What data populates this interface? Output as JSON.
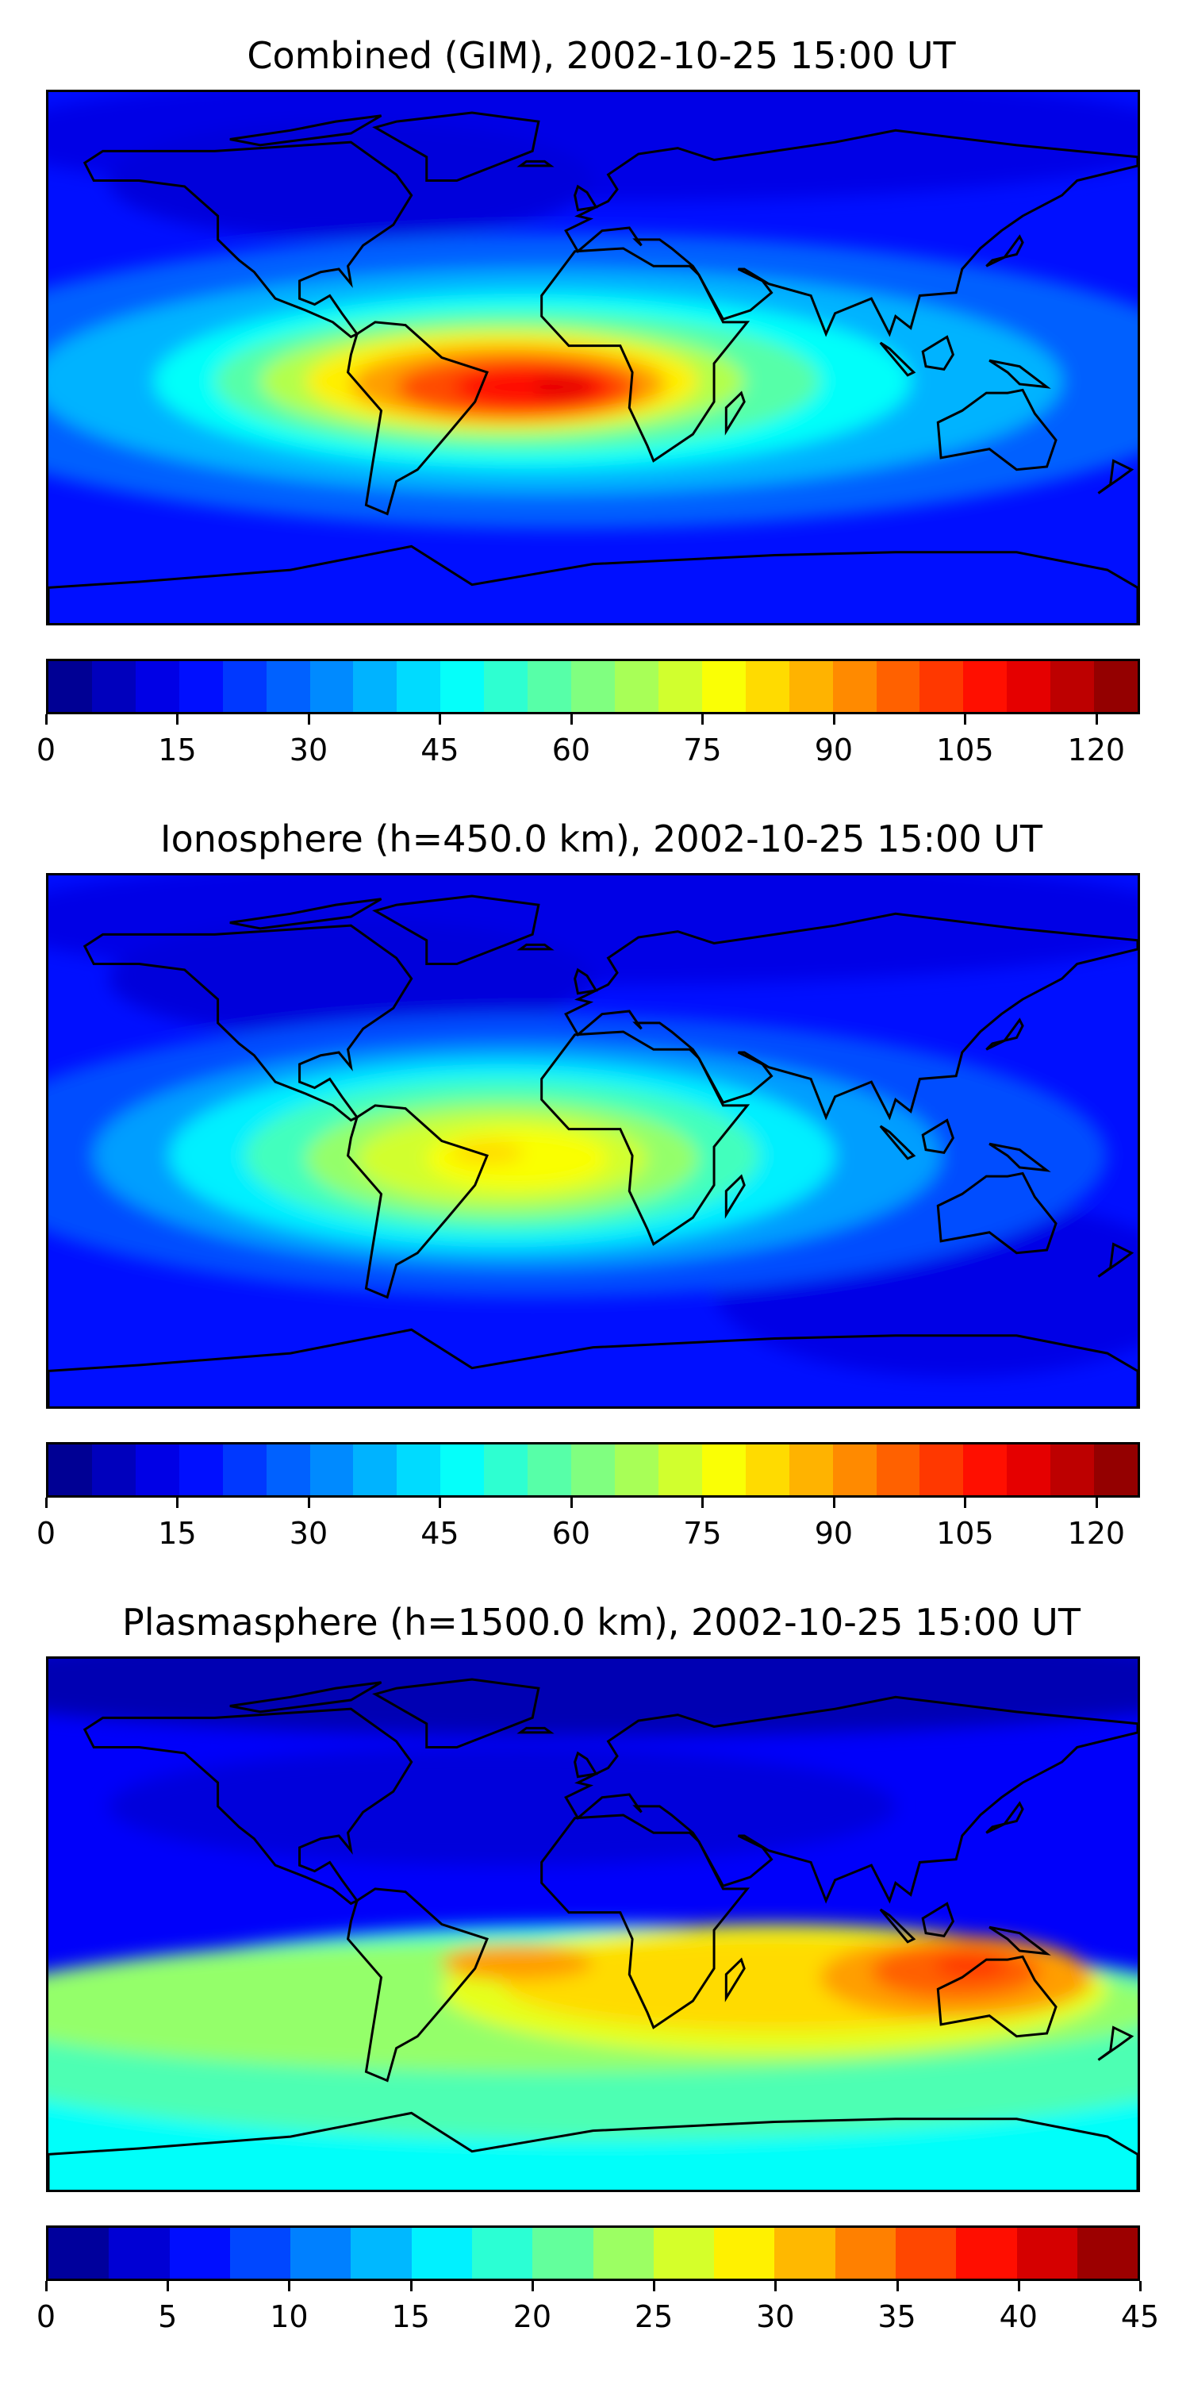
{
  "chart_data": [
    {
      "type": "heatmap",
      "title": "Combined (GIM), 2002-10-25 15:00 UT",
      "projection": "equirectangular world map with coastlines",
      "colormap": "jet",
      "colorbar": {
        "min": 0,
        "max": 125,
        "step": 5,
        "ticks": [
          "0",
          "15",
          "30",
          "45",
          "60",
          "75",
          "90",
          "105",
          "120"
        ],
        "tick_values": [
          0,
          15,
          30,
          45,
          60,
          75,
          90,
          105,
          120
        ]
      },
      "field_summary": {
        "max_approx": 110,
        "max_region": "equatorial South America / Atlantic / Africa",
        "min_approx": 5
      }
    },
    {
      "type": "heatmap",
      "title": "Ionosphere  (h=450.0 km), 2002-10-25 15:00 UT",
      "projection": "equirectangular world map with coastlines",
      "colormap": "jet",
      "colorbar": {
        "min": 0,
        "max": 125,
        "step": 5,
        "ticks": [
          "0",
          "15",
          "30",
          "45",
          "60",
          "75",
          "90",
          "105",
          "120"
        ],
        "tick_values": [
          0,
          15,
          30,
          45,
          60,
          75,
          90,
          105,
          120
        ]
      },
      "field_summary": {
        "max_approx": 80,
        "max_region": "South America / West Africa",
        "min_approx": 5
      }
    },
    {
      "type": "heatmap",
      "title": "Plasmasphere (h=1500.0 km), 2002-10-25 15:00 UT",
      "projection": "equirectangular world map with coastlines",
      "colormap": "jet",
      "colorbar": {
        "min": 0,
        "max": 45,
        "step": 2.5,
        "ticks": [
          "0",
          "5",
          "10",
          "15",
          "20",
          "25",
          "30",
          "35",
          "40",
          "45"
        ],
        "tick_values": [
          0,
          5,
          10,
          15,
          20,
          25,
          30,
          35,
          40,
          45
        ]
      },
      "field_summary": {
        "max_approx": 36,
        "max_region": "Indian Ocean / Indonesia",
        "min_approx": 2
      }
    }
  ]
}
